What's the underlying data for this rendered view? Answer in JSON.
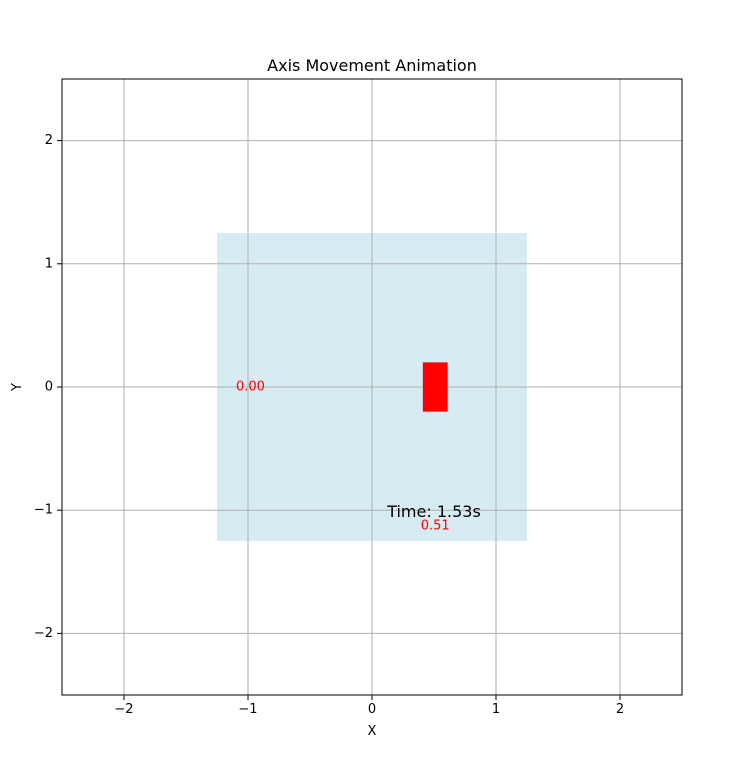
{
  "chart_data": {
    "type": "scatter",
    "title": "Axis Movement Animation",
    "xlabel": "X",
    "ylabel": "Y",
    "xlim": [
      -2.5,
      2.5
    ],
    "ylim": [
      -2.5,
      2.5
    ],
    "xticks": [
      -2,
      -1,
      0,
      1,
      2
    ],
    "yticks": [
      -2,
      -1,
      0,
      1,
      2
    ],
    "xtick_labels": [
      "−2",
      "−1",
      "0",
      "1",
      "2"
    ],
    "ytick_labels": [
      "−2",
      "−1",
      "0",
      "1",
      "2"
    ],
    "grid": true,
    "background_region": {
      "x0": -1.25,
      "x1": 1.25,
      "y0": -1.25,
      "y1": 1.25,
      "color": "#add8e6"
    },
    "moving_marker": {
      "x0": 0.41,
      "x1": 0.61,
      "y0": -0.2,
      "y1": 0.2,
      "color": "#ff0000"
    },
    "annotations": [
      {
        "text": "0.00",
        "x": -0.98,
        "y": 0.0,
        "color": "#ff0000"
      },
      {
        "text": "0.51",
        "x": 0.51,
        "y": -1.13,
        "color": "#ff0000"
      },
      {
        "text": "Time: 1.53s",
        "x": 0.5,
        "y": -1.02,
        "color": "#000000"
      }
    ]
  }
}
